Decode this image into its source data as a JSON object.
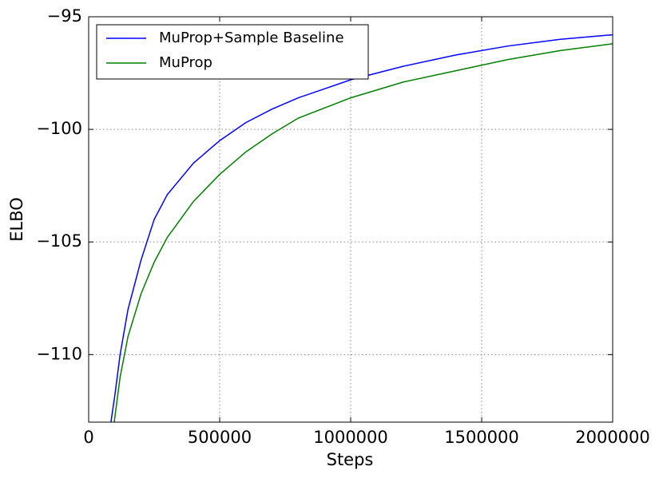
{
  "chart_data": {
    "type": "line",
    "x_label": "Steps",
    "y_label": "ELBO",
    "xlim": [
      0,
      2000000
    ],
    "xticks": [
      0,
      500000,
      1000000,
      1500000,
      2000000
    ],
    "ylim": [
      -113,
      -95
    ],
    "yticks": [
      {
        "value": -95,
        "label": "−95"
      },
      {
        "value": -100,
        "label": "−100"
      },
      {
        "value": -105,
        "label": "−105"
      },
      {
        "value": -110,
        "label": "−110"
      }
    ],
    "grid": true,
    "legend": "upper left",
    "series": [
      {
        "name": "MuProp+Sample Baseline",
        "color": "#0000ff",
        "x": [
          85000,
          100000,
          120000,
          150000,
          200000,
          250000,
          300000,
          400000,
          500000,
          600000,
          700000,
          800000,
          1000000,
          1200000,
          1400000,
          1600000,
          1800000,
          2000000
        ],
        "values": [
          -113,
          -111.8,
          -110.0,
          -108.0,
          -105.8,
          -104.0,
          -102.9,
          -101.5,
          -100.5,
          -99.7,
          -99.1,
          -98.6,
          -97.8,
          -97.2,
          -96.7,
          -96.3,
          -96.0,
          -95.8
        ]
      },
      {
        "name": "MuProp",
        "color": "#008000",
        "x": [
          97500,
          120000,
          150000,
          200000,
          250000,
          300000,
          400000,
          500000,
          600000,
          700000,
          800000,
          1000000,
          1200000,
          1400000,
          1600000,
          1800000,
          2000000
        ],
        "values": [
          -113,
          -111.0,
          -109.2,
          -107.3,
          -105.9,
          -104.8,
          -103.2,
          -102.0,
          -101.0,
          -100.2,
          -99.5,
          -98.6,
          -97.9,
          -97.4,
          -96.9,
          -96.5,
          -96.2
        ]
      }
    ]
  }
}
